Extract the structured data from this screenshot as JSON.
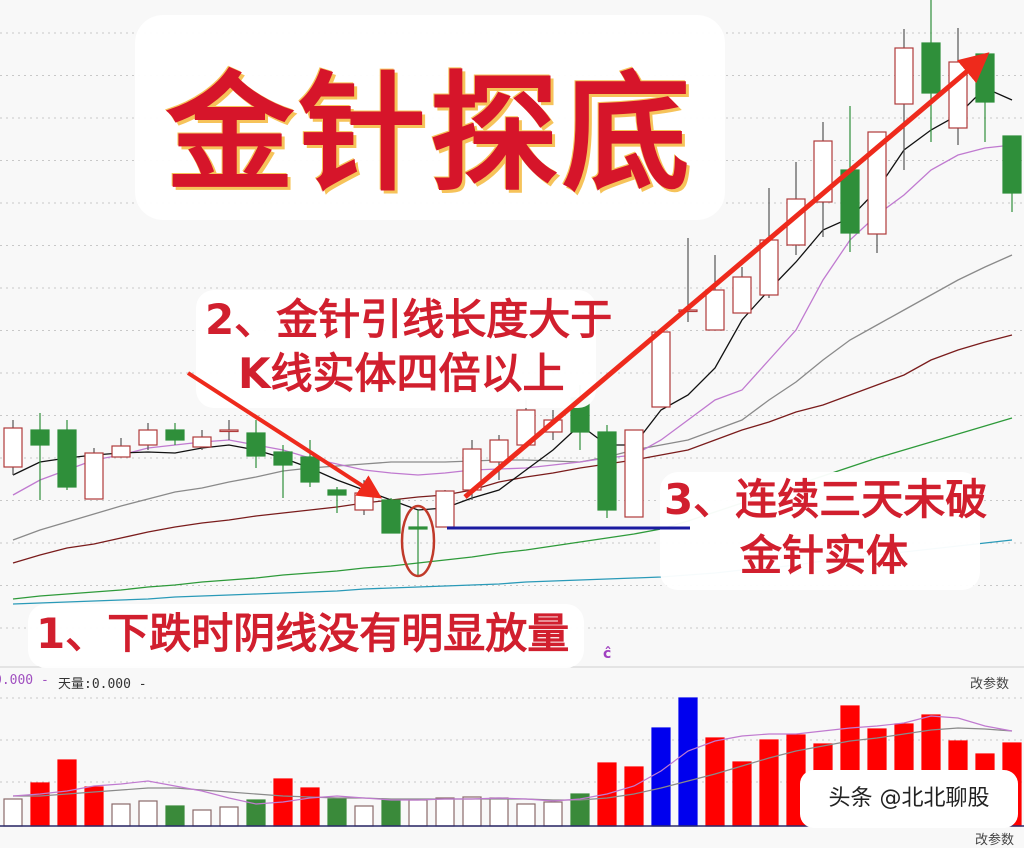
{
  "title": "金针探底",
  "annotations": {
    "point2_line1": "2、金针引线长度大于",
    "point2_line2": "K线实体四倍以上",
    "point3_line1": "3、连续三天未破",
    "point3_line2": "金针实体",
    "point1": "1、下跌时阴线没有明显放量"
  },
  "volume_panel": {
    "label_prefix": "0.000 -",
    "label_tianliang": "天量:0.000 -",
    "params_button": "改参数",
    "params_button_bottom": "改参数",
    "marker": "ĉ"
  },
  "watermark": "头条 @北北聊股",
  "colors": {
    "up_candle": "#b03a3a",
    "down_candle": "#2f8f3a",
    "annotation_red": "#d11f2e",
    "arrow_red": "#ee2a1c",
    "support_line": "#1a1aa0",
    "ma5": "#111111",
    "ma10": "#c07ad0",
    "ma20": "#8a8a8a",
    "ma30": "#7a1c1c",
    "ma60": "#2e9a3a",
    "ma120": "#2a9ab8",
    "vol_red": "#ff0000",
    "vol_blue": "#0000ee",
    "vol_green": "#3a8a3a"
  },
  "chart_data": [
    {
      "type": "candlestick",
      "title": "",
      "grid": true,
      "candles": [
        {
          "o": 23.3,
          "h": 28.0,
          "l": 22.5,
          "c": 27.2
        },
        {
          "o": 27.0,
          "h": 28.7,
          "l": 20.0,
          "c": 25.5
        },
        {
          "o": 27.0,
          "h": 28.0,
          "l": 21.0,
          "c": 21.3
        },
        {
          "o": 20.1,
          "h": 25.2,
          "l": 20.1,
          "c": 24.7
        },
        {
          "o": 24.3,
          "h": 26.2,
          "l": 24.3,
          "c": 25.4
        },
        {
          "o": 25.5,
          "h": 27.7,
          "l": 25.0,
          "c": 27.0
        },
        {
          "o": 27.0,
          "h": 27.7,
          "l": 25.5,
          "c": 26.0
        },
        {
          "o": 25.3,
          "h": 27.0,
          "l": 25.0,
          "c": 26.3
        },
        {
          "o": 26.9,
          "h": 28.0,
          "l": 26.0,
          "c": 27.0
        },
        {
          "o": 26.7,
          "h": 28.0,
          "l": 23.2,
          "c": 24.4
        },
        {
          "o": 24.8,
          "h": 25.5,
          "l": 20.2,
          "c": 23.5
        },
        {
          "o": 24.3,
          "h": 26.0,
          "l": 21.3,
          "c": 21.8
        },
        {
          "o": 21.0,
          "h": 21.3,
          "l": 18.7,
          "c": 20.5
        },
        {
          "o": 19.0,
          "h": 22.0,
          "l": 18.5,
          "c": 20.7
        },
        {
          "o": 20.0,
          "h": 20.2,
          "l": 16.7,
          "c": 16.7
        },
        {
          "o": 17.3,
          "h": 19.0,
          "l": 12.5,
          "c": 17.1
        },
        {
          "o": 17.3,
          "h": 21.0,
          "l": 17.3,
          "c": 20.9
        },
        {
          "o": 21.0,
          "h": 26.0,
          "l": 20.0,
          "c": 25.1
        },
        {
          "o": 23.8,
          "h": 26.5,
          "l": 22.0,
          "c": 26.0
        },
        {
          "o": 25.5,
          "h": 30.0,
          "l": 25.5,
          "c": 29.0
        },
        {
          "o": 26.8,
          "h": 29.0,
          "l": 26.0,
          "c": 28.0
        },
        {
          "o": 30.2,
          "h": 31.5,
          "l": 25.0,
          "c": 26.8
        },
        {
          "o": 26.8,
          "h": 27.5,
          "l": 18.2,
          "c": 19.0
        },
        {
          "o": 18.3,
          "h": 27.0,
          "l": 18.3,
          "c": 27.0
        },
        {
          "o": 29.3,
          "h": 36.8,
          "l": 29.3,
          "c": 36.8
        },
        {
          "o": 38.9,
          "h": 46.2,
          "l": 37.8,
          "c": 39.0
        },
        {
          "o": 37.0,
          "h": 44.5,
          "l": 37.0,
          "c": 41.0
        },
        {
          "o": 38.7,
          "h": 43.3,
          "l": 38.7,
          "c": 42.3
        },
        {
          "o": 40.5,
          "h": 51.2,
          "l": 40.2,
          "c": 46.0
        },
        {
          "o": 45.5,
          "h": 53.8,
          "l": 44.5,
          "c": 50.1
        },
        {
          "o": 49.8,
          "h": 57.8,
          "l": 46.3,
          "c": 55.9
        },
        {
          "o": 53.0,
          "h": 59.4,
          "l": 44.8,
          "c": 46.7
        },
        {
          "o": 46.6,
          "h": 56.8,
          "l": 44.7,
          "c": 56.8
        },
        {
          "o": 59.6,
          "h": 67.1,
          "l": 53.0,
          "c": 65.2
        },
        {
          "o": 65.7,
          "h": 70.0,
          "l": 55.8,
          "c": 60.7
        },
        {
          "o": 57.2,
          "h": 67.2,
          "l": 55.5,
          "c": 63.8
        },
        {
          "o": 64.6,
          "h": 64.6,
          "l": 55.8,
          "c": 59.8
        },
        {
          "o": 56.4,
          "h": 56.4,
          "l": 48.8,
          "c": 50.7
        }
      ],
      "moving_averages": {
        "ma5": [
          22.5,
          23.8,
          24.2,
          24.5,
          24.7,
          24.8,
          24.7,
          25.2,
          25.5,
          25.0,
          24.2,
          23.2,
          22.0,
          21.0,
          20.0,
          19.0,
          19.2,
          20.2,
          21.0,
          23.0,
          25.0,
          27.5,
          25.5,
          25.5,
          29.0,
          30.5,
          33.2,
          38.0,
          41.0,
          43.8,
          47.0,
          48.2,
          51.0,
          55.0,
          57.0,
          58.5,
          61.2,
          60.0
        ],
        "ma10": [
          20.5,
          22.0,
          23.0,
          24.0,
          24.5,
          25.2,
          25.5,
          25.8,
          26.0,
          25.5,
          25.0,
          24.2,
          23.6,
          23.0,
          22.7,
          22.5,
          22.7,
          23.0,
          23.1,
          23.2,
          23.5,
          23.8,
          24.2,
          24.5,
          26.0,
          28.0,
          30.0,
          31.0,
          34.0,
          37.0,
          42.0,
          46.0,
          48.5,
          50.5,
          53.0,
          54.5,
          55.2,
          55.5
        ],
        "ma20": [
          16.0,
          17.0,
          17.8,
          18.6,
          19.4,
          20.1,
          20.8,
          21.2,
          21.8,
          22.3,
          22.9,
          23.2,
          23.4,
          23.6,
          23.8,
          23.8,
          23.8,
          23.9,
          24.0,
          24.0,
          23.9,
          23.8,
          24.3,
          25.0,
          25.5,
          26.0,
          27.0,
          28.0,
          30.0,
          31.8,
          34.0,
          36.0,
          37.5,
          39.0,
          40.5,
          42.0,
          43.3,
          44.5
        ],
        "ma30": [
          13.7,
          14.5,
          15.2,
          15.6,
          16.2,
          16.8,
          17.3,
          17.7,
          18.0,
          18.4,
          18.7,
          19.0,
          19.3,
          19.7,
          20.0,
          20.3,
          20.5,
          21.0,
          21.8,
          22.3,
          22.7,
          23.2,
          23.6,
          24.0,
          24.5,
          25.0,
          26.0,
          27.0,
          27.8,
          28.8,
          29.5,
          30.5,
          31.5,
          32.5,
          34.0,
          35.0,
          35.8,
          36.5
        ],
        "ma60": [
          10.1,
          10.4,
          10.6,
          10.8,
          11.0,
          11.3,
          11.5,
          11.8,
          12.0,
          12.2,
          12.5,
          12.7,
          12.9,
          13.2,
          13.4,
          13.7,
          14.0,
          14.3,
          14.7,
          15.0,
          15.4,
          15.8,
          16.2,
          16.6,
          17.1,
          17.9,
          18.8,
          19.7,
          20.6,
          21.5,
          22.4,
          23.3,
          24.2,
          25.0,
          25.8,
          26.6,
          27.4,
          28.2
        ],
        "ma120": [
          9.6,
          9.7,
          9.8,
          9.9,
          10.0,
          10.1,
          10.3,
          10.4,
          10.5,
          10.6,
          10.7,
          10.8,
          10.9,
          11.1,
          11.2,
          11.3,
          11.4,
          11.5,
          11.6,
          11.8,
          11.9,
          12.0,
          12.1,
          12.2,
          12.3,
          12.5,
          12.7,
          13.0,
          13.2,
          13.5,
          13.9,
          14.2,
          14.5,
          14.8,
          15.1,
          15.4,
          15.7,
          16.0
        ]
      },
      "golden_needle_index": 16,
      "support_level": 17.3
    },
    {
      "type": "bar",
      "title": "",
      "values": [
        27,
        43,
        66,
        39,
        22,
        25,
        20,
        16,
        19,
        26,
        47,
        38,
        27,
        20,
        26,
        26,
        28,
        29,
        28,
        22,
        24,
        32,
        63,
        59,
        98,
        128,
        88,
        64,
        86,
        91,
        82,
        120,
        97,
        102,
        111,
        85,
        72,
        83
      ],
      "bar_colors": [
        "hollow",
        "red",
        "red",
        "red",
        "hollow",
        "hollow",
        "green",
        "hollow",
        "hollow",
        "green",
        "red",
        "red",
        "green",
        "hollow",
        "green",
        "hollow",
        "hollow",
        "hollow",
        "hollow",
        "hollow",
        "hollow",
        "green",
        "red",
        "red",
        "blue",
        "blue",
        "red",
        "red",
        "red",
        "red",
        "red",
        "red",
        "red",
        "red",
        "red",
        "red",
        "red",
        "red"
      ],
      "ma_fast": [
        30,
        32,
        35,
        40,
        42,
        45,
        40,
        35,
        28,
        22,
        24,
        28,
        30,
        28,
        26,
        26,
        27,
        27,
        28,
        27,
        25,
        27,
        32,
        40,
        55,
        75,
        85,
        90,
        92,
        92,
        95,
        98,
        100,
        103,
        110,
        108,
        100,
        95
      ],
      "ma_slow": [
        30,
        30,
        32,
        34,
        36,
        38,
        38,
        36,
        34,
        32,
        30,
        29,
        28,
        28,
        27,
        27,
        27,
        27,
        27,
        27,
        26,
        26,
        28,
        32,
        38,
        45,
        52,
        60,
        68,
        75,
        80,
        85,
        88,
        92,
        96,
        98,
        97,
        95
      ]
    }
  ]
}
